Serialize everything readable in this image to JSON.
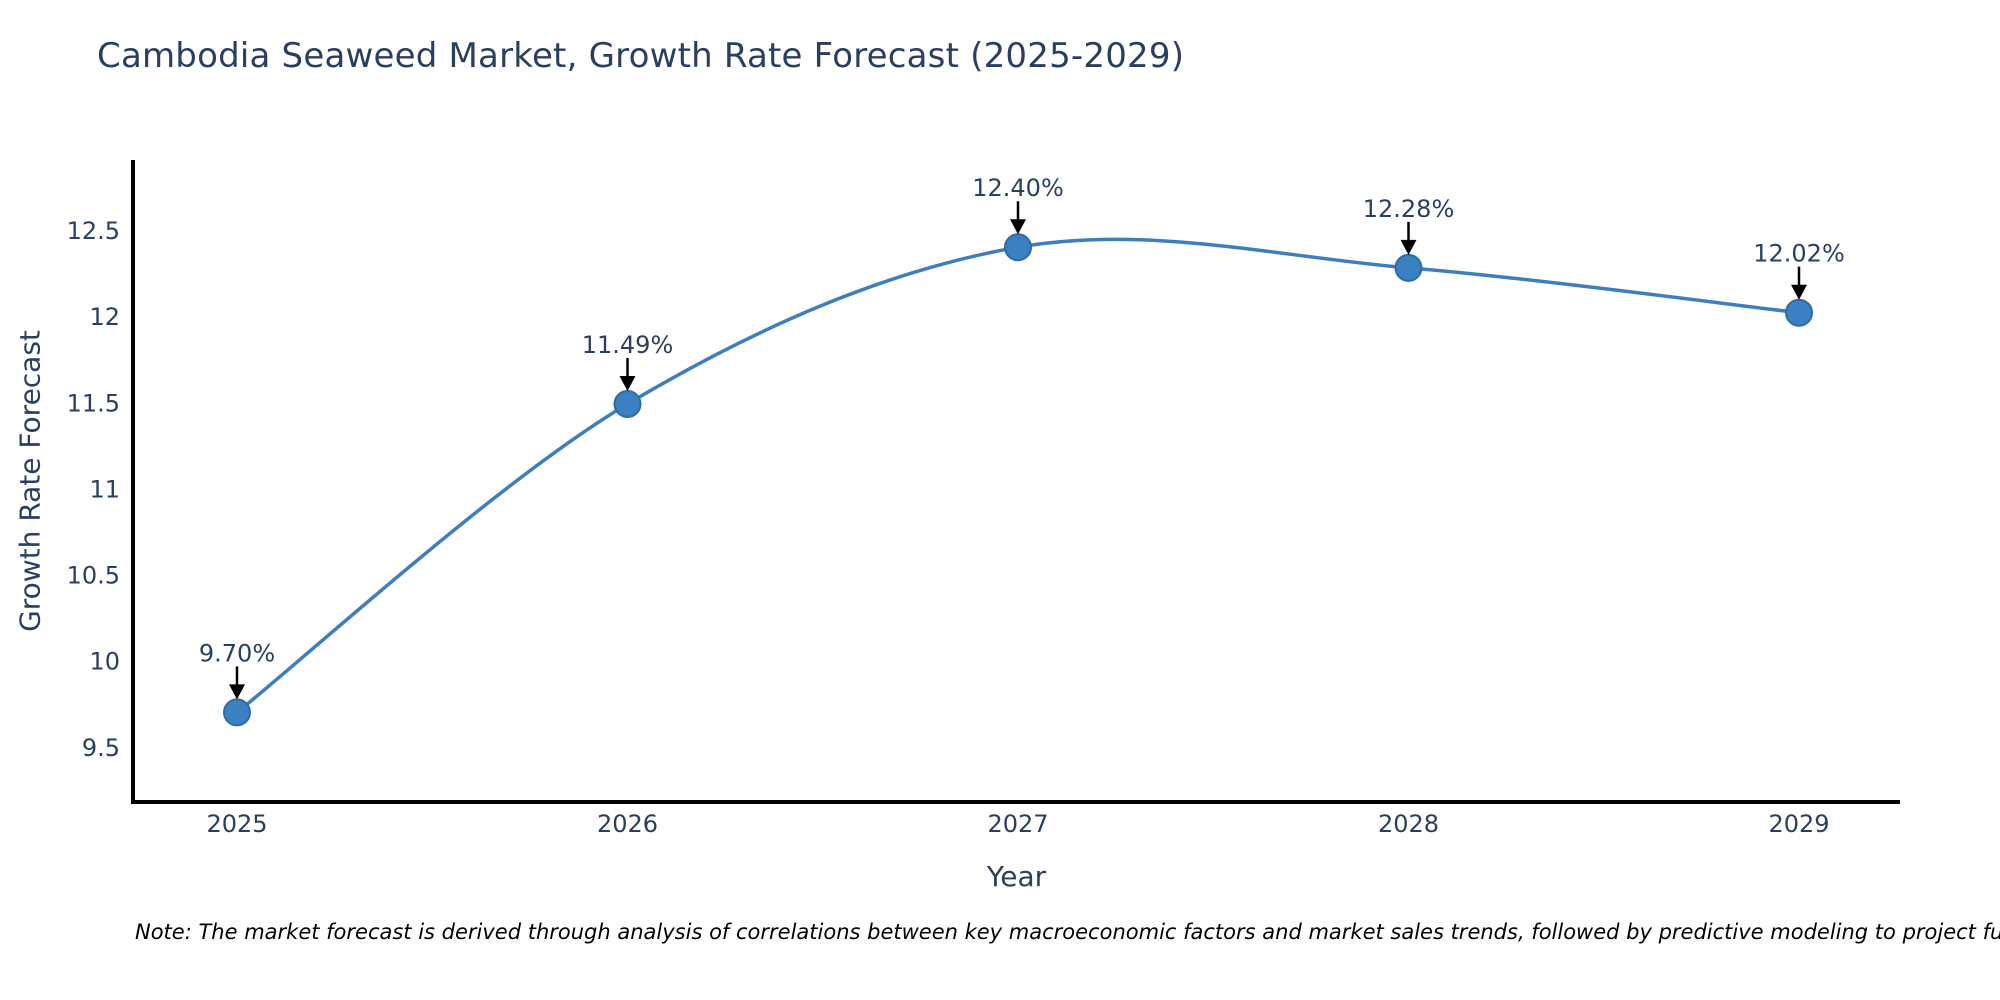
{
  "chart_data": {
    "type": "line",
    "title": "Cambodia Seaweed Market, Growth Rate Forecast (2025-2029)",
    "xlabel": "Year",
    "ylabel": "Growth Rate Forecast",
    "x": [
      2025,
      2026,
      2027,
      2028,
      2029
    ],
    "series": [
      {
        "name": "Growth Rate Forecast",
        "values": [
          9.7,
          11.49,
          12.4,
          12.28,
          12.02
        ]
      }
    ],
    "point_labels": [
      "9.70%",
      "11.49%",
      "12.40%",
      "12.28%",
      "12.02%"
    ],
    "yticks": [
      "9.5",
      "10",
      "10.5",
      "11",
      "11.5",
      "12",
      "12.5"
    ],
    "ytick_values": [
      9.5,
      10,
      10.5,
      11,
      11.5,
      12,
      12.5
    ],
    "ylim": [
      9.18,
      12.91
    ],
    "line_shape": "spline",
    "grid": false,
    "legend": "none",
    "note": "Note: The market forecast is derived through analysis of correlations between key macroeconomic factors and market sales trends, followed by predictive modeling to project future sales"
  },
  "colors": {
    "background": "#ffffff",
    "line": "#3d7ebd",
    "marker_fill": "#3b80c2",
    "marker_edge": "#2e6ca5",
    "axis": "#000000",
    "arrow": "#000000",
    "text": "#2a3f5f",
    "note_text": "#000000"
  }
}
